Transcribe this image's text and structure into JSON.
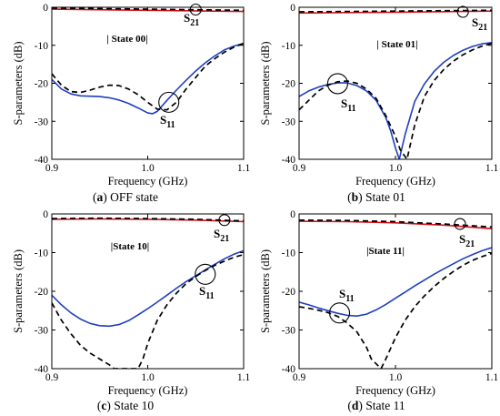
{
  "chart_data": [
    {
      "type": "line",
      "caption": {
        "letter": "a",
        "text": "OFF state"
      },
      "state_label": "| State 00|",
      "xlabel": "Frequency (GHz)",
      "ylabel": "S-parameters (dB)",
      "xlim": [
        0.9,
        1.1
      ],
      "ylim": [
        -40,
        0
      ],
      "xticks": [
        "0.9",
        "1.0",
        "1.1"
      ],
      "yticks": [
        "0",
        "-10",
        "-20",
        "-30",
        "-40"
      ],
      "grid": false,
      "series": [
        {
          "role": "measured_s21",
          "color": "#d8101a",
          "style": "solid",
          "x": [
            0.9,
            1.0,
            1.1
          ],
          "y": [
            -0.5,
            -0.8,
            -1.1
          ]
        },
        {
          "role": "simulated_s21",
          "color": "#000000",
          "style": "dashed",
          "x": [
            0.9,
            1.0,
            1.1
          ],
          "y": [
            -0.2,
            -0.5,
            -0.8
          ]
        },
        {
          "role": "measured_s11",
          "color": "#1f3fbf",
          "style": "solid",
          "x": [
            0.9,
            0.91,
            0.92,
            0.93,
            0.94,
            0.95,
            0.96,
            0.97,
            0.98,
            0.99,
            1.0,
            1.005,
            1.01,
            1.02,
            1.03,
            1.04,
            1.05,
            1.06,
            1.07,
            1.08,
            1.09,
            1.1
          ],
          "y": [
            -19,
            -21.5,
            -22.8,
            -23.3,
            -23.4,
            -23.5,
            -23.8,
            -24.4,
            -25.3,
            -26.5,
            -27.8,
            -28.0,
            -27.4,
            -24.5,
            -21.8,
            -19.2,
            -16.8,
            -14.6,
            -12.8,
            -11.2,
            -10.2,
            -9.5
          ]
        },
        {
          "role": "simulated_s11",
          "color": "#000000",
          "style": "dashed",
          "x": [
            0.9,
            0.91,
            0.92,
            0.93,
            0.94,
            0.95,
            0.96,
            0.97,
            0.98,
            0.99,
            1.0,
            1.01,
            1.02,
            1.03,
            1.04,
            1.05,
            1.06,
            1.07,
            1.08,
            1.09,
            1.1
          ],
          "y": [
            -17.5,
            -20.5,
            -22.2,
            -22.4,
            -21.8,
            -21.0,
            -20.5,
            -20.6,
            -21.5,
            -23.0,
            -25.0,
            -26.8,
            -27.0,
            -25.0,
            -21.5,
            -18.5,
            -15.5,
            -13.5,
            -11.8,
            -10.5,
            -9.5
          ]
        }
      ],
      "markers": [
        {
          "label": "S",
          "sub": "21",
          "cx": 1.05,
          "cy": -0.6
        },
        {
          "label": "S",
          "sub": "11",
          "cx": 1.022,
          "cy": -25
        }
      ]
    },
    {
      "type": "line",
      "caption": {
        "letter": "b",
        "text": "State 01"
      },
      "state_label": "| State 01|",
      "xlabel": "Frequency (GHz)",
      "ylabel": "S-parameters (dB)",
      "xlim": [
        0.9,
        1.1
      ],
      "ylim": [
        -40,
        0
      ],
      "xticks": [
        "0.9",
        "1.0",
        "1.1"
      ],
      "yticks": [
        "0",
        "-10",
        "-20",
        "-30",
        "-40"
      ],
      "grid": false,
      "series": [
        {
          "role": "measured_s21",
          "color": "#d8101a",
          "style": "solid",
          "x": [
            0.9,
            1.0,
            1.1
          ],
          "y": [
            -1.5,
            -1.3,
            -1.0
          ]
        },
        {
          "role": "simulated_s21",
          "color": "#000000",
          "style": "dashed",
          "x": [
            0.9,
            1.0,
            1.1
          ],
          "y": [
            -1.2,
            -1.0,
            -0.8
          ]
        },
        {
          "role": "measured_s11",
          "color": "#1f3fbf",
          "style": "solid",
          "x": [
            0.9,
            0.91,
            0.92,
            0.93,
            0.94,
            0.95,
            0.96,
            0.97,
            0.98,
            0.99,
            0.995,
            1.0,
            1.004,
            1.01,
            1.02,
            1.03,
            1.04,
            1.05,
            1.06,
            1.07,
            1.08,
            1.09,
            1.1
          ],
          "y": [
            -23.5,
            -22.0,
            -21.0,
            -20.3,
            -19.9,
            -19.9,
            -20.6,
            -22.0,
            -24.5,
            -29.0,
            -32.5,
            -37.0,
            -40.0,
            -33.5,
            -24.8,
            -20.2,
            -16.9,
            -14.5,
            -12.7,
            -11.3,
            -10.3,
            -9.6,
            -9.3
          ]
        },
        {
          "role": "simulated_s11",
          "color": "#000000",
          "style": "dashed",
          "x": [
            0.9,
            0.91,
            0.92,
            0.93,
            0.94,
            0.95,
            0.96,
            0.97,
            0.98,
            0.99,
            1.0,
            1.005,
            1.012,
            1.02,
            1.03,
            1.04,
            1.05,
            1.06,
            1.07,
            1.08,
            1.09,
            1.1
          ],
          "y": [
            -27,
            -24.5,
            -22.0,
            -20.5,
            -19.6,
            -19.4,
            -20.0,
            -21.5,
            -24.0,
            -28.5,
            -34.0,
            -37.5,
            -40.0,
            -31.0,
            -23.5,
            -19.3,
            -16.4,
            -14.2,
            -12.5,
            -11.2,
            -10.2,
            -9.5
          ]
        }
      ],
      "markers": [
        {
          "label": "S",
          "sub": "21",
          "cx": 1.07,
          "cy": -1.2
        },
        {
          "label": "S",
          "sub": "11",
          "cx": 0.94,
          "cy": -20.1
        }
      ]
    },
    {
      "type": "line",
      "caption": {
        "letter": "c",
        "text": "State 10"
      },
      "state_label": "|State 10|",
      "xlabel": "Frequency (GHz)",
      "ylabel": "S-parameters (dB)",
      "xlim": [
        0.9,
        1.1
      ],
      "ylim": [
        -40,
        0
      ],
      "xticks": [
        "0.9",
        "1.0",
        "1.1"
      ],
      "yticks": [
        "0",
        "-10",
        "-20",
        "-30",
        "-40"
      ],
      "grid": false,
      "series": [
        {
          "role": "measured_s21",
          "color": "#d8101a",
          "style": "solid",
          "x": [
            0.9,
            0.95,
            1.0,
            1.05,
            1.1
          ],
          "y": [
            -1.4,
            -1.3,
            -1.4,
            -1.6,
            -2.0
          ]
        },
        {
          "role": "simulated_s21",
          "color": "#000000",
          "style": "dashed",
          "x": [
            0.9,
            0.95,
            1.0,
            1.05,
            1.1
          ],
          "y": [
            -1.2,
            -1.1,
            -1.2,
            -1.4,
            -1.8
          ]
        },
        {
          "role": "measured_s11",
          "color": "#1f3fbf",
          "style": "solid",
          "x": [
            0.9,
            0.91,
            0.92,
            0.93,
            0.94,
            0.95,
            0.96,
            0.97,
            0.98,
            0.99,
            1.0,
            1.01,
            1.02,
            1.03,
            1.04,
            1.05,
            1.06,
            1.07,
            1.08,
            1.09,
            1.1
          ],
          "y": [
            -21,
            -23.5,
            -25.6,
            -27.2,
            -28.3,
            -28.9,
            -29.0,
            -28.6,
            -27.6,
            -26.1,
            -24.5,
            -22.8,
            -21.0,
            -19.2,
            -17.5,
            -16.0,
            -14.5,
            -13.0,
            -11.6,
            -10.4,
            -9.5
          ]
        },
        {
          "role": "simulated_s11",
          "color": "#000000",
          "style": "dashed",
          "x": [
            0.9,
            0.91,
            0.92,
            0.93,
            0.94,
            0.95,
            0.96,
            0.965,
            0.99,
            0.995,
            1.0,
            1.01,
            1.02,
            1.03,
            1.04,
            1.05,
            1.06,
            1.07,
            1.08,
            1.09,
            1.1
          ],
          "y": [
            -23,
            -27.5,
            -31.0,
            -34.0,
            -36.0,
            -37.5,
            -39.0,
            -40.0,
            -40.0,
            -37.5,
            -33.5,
            -27.5,
            -23.5,
            -20.5,
            -18.0,
            -16.2,
            -14.6,
            -13.3,
            -12.2,
            -11.2,
            -10.5
          ]
        }
      ],
      "markers": [
        {
          "label": "S",
          "sub": "21",
          "cx": 1.08,
          "cy": -1.6
        },
        {
          "label": "S",
          "sub": "11",
          "cx": 1.06,
          "cy": -15.6
        }
      ]
    },
    {
      "type": "line",
      "caption": {
        "letter": "d",
        "text": "State 11"
      },
      "state_label": "|State 11|",
      "xlabel": "Frequency (GHz)",
      "ylabel": "S-parameters (dB)",
      "xlim": [
        0.9,
        1.1
      ],
      "ylim": [
        -40,
        0
      ],
      "xticks": [
        "0.9",
        "1.0",
        "1.1"
      ],
      "yticks": [
        "0",
        "-10",
        "-20",
        "-30",
        "-40"
      ],
      "grid": false,
      "series": [
        {
          "role": "measured_s21",
          "color": "#d8101a",
          "style": "solid",
          "x": [
            0.9,
            0.95,
            1.0,
            1.05,
            1.1
          ],
          "y": [
            -1.9,
            -2.0,
            -2.3,
            -2.9,
            -3.8
          ]
        },
        {
          "role": "simulated_s21",
          "color": "#000000",
          "style": "dashed",
          "x": [
            0.9,
            0.95,
            1.0,
            1.05,
            1.1
          ],
          "y": [
            -1.6,
            -1.7,
            -2.0,
            -2.6,
            -3.4
          ]
        },
        {
          "role": "measured_s11",
          "color": "#1f3fbf",
          "style": "solid",
          "x": [
            0.9,
            0.91,
            0.92,
            0.93,
            0.94,
            0.95,
            0.96,
            0.97,
            0.98,
            0.99,
            1.0,
            1.01,
            1.02,
            1.03,
            1.04,
            1.05,
            1.06,
            1.07,
            1.08,
            1.09,
            1.1
          ],
          "y": [
            -22.8,
            -23.5,
            -24.3,
            -25.0,
            -25.7,
            -26.2,
            -26.4,
            -25.9,
            -24.8,
            -23.4,
            -21.8,
            -20.2,
            -18.6,
            -17.1,
            -15.6,
            -14.2,
            -12.9,
            -11.6,
            -10.5,
            -9.5,
            -8.7
          ]
        },
        {
          "role": "simulated_s11",
          "color": "#000000",
          "style": "dashed",
          "x": [
            0.9,
            0.91,
            0.92,
            0.93,
            0.94,
            0.95,
            0.96,
            0.97,
            0.975,
            0.985,
            0.99,
            1.0,
            1.01,
            1.02,
            1.03,
            1.04,
            1.05,
            1.06,
            1.07,
            1.08,
            1.09,
            1.1
          ],
          "y": [
            -24.0,
            -24.4,
            -24.9,
            -25.5,
            -26.5,
            -28.2,
            -30.5,
            -34.5,
            -37.5,
            -40.0,
            -37.5,
            -32.0,
            -27.5,
            -24.0,
            -21.2,
            -18.8,
            -16.7,
            -14.9,
            -13.3,
            -12.0,
            -11.0,
            -10.2
          ]
        }
      ],
      "markers": [
        {
          "label": "S",
          "sub": "21",
          "cx": 1.067,
          "cy": -2.6
        },
        {
          "label": "S",
          "sub": "11",
          "cx": 0.942,
          "cy": -25.6
        }
      ]
    }
  ]
}
